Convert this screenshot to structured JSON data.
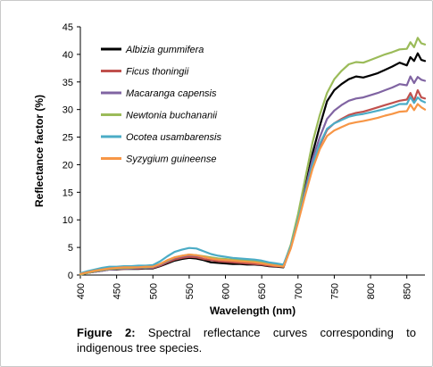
{
  "chart_data": {
    "type": "line",
    "xlabel": "Wavelength (nm)",
    "ylabel": "Reflectance factor (%)",
    "xlim": [
      400,
      875
    ],
    "ylim": [
      0,
      45
    ],
    "x_ticks": [
      400,
      450,
      500,
      550,
      600,
      650,
      700,
      750,
      800,
      850
    ],
    "y_ticks": [
      0,
      5,
      10,
      15,
      20,
      25,
      30,
      35,
      40,
      45
    ],
    "grid": false,
    "legend_position": "top-left",
    "x": [
      400,
      410,
      420,
      430,
      440,
      450,
      460,
      470,
      480,
      490,
      500,
      510,
      520,
      530,
      540,
      550,
      560,
      570,
      580,
      590,
      600,
      610,
      620,
      630,
      640,
      650,
      660,
      670,
      680,
      690,
      700,
      710,
      720,
      730,
      740,
      750,
      760,
      770,
      780,
      790,
      800,
      810,
      820,
      830,
      840,
      850,
      855,
      860,
      865,
      870,
      875
    ],
    "series": [
      {
        "name": "Albizia gummifera",
        "color": "#000000",
        "values": [
          0.1,
          0.4,
          0.6,
          0.8,
          1.0,
          1.0,
          1.1,
          1.1,
          1.1,
          1.2,
          1.2,
          1.6,
          2.1,
          2.6,
          2.9,
          3.1,
          3.0,
          2.7,
          2.3,
          2.2,
          2.1,
          2.0,
          2.0,
          1.9,
          1.9,
          1.8,
          1.6,
          1.5,
          1.4,
          5.0,
          10.0,
          16.0,
          22.0,
          27.0,
          31.5,
          33.5,
          34.6,
          35.5,
          36.0,
          35.8,
          36.2,
          36.6,
          37.2,
          37.8,
          38.5,
          38.0,
          39.5,
          38.8,
          40.2,
          39.0,
          38.8
        ]
      },
      {
        "name": "Ficus thoningii",
        "color": "#c0504d",
        "values": [
          0.1,
          0.4,
          0.6,
          0.8,
          1.0,
          1.1,
          1.1,
          1.2,
          1.2,
          1.3,
          1.3,
          1.7,
          2.3,
          2.8,
          3.1,
          3.3,
          3.2,
          2.9,
          2.7,
          2.5,
          2.4,
          2.3,
          2.2,
          2.1,
          2.0,
          1.9,
          1.7,
          1.6,
          1.5,
          5.0,
          9.8,
          15.0,
          20.0,
          23.5,
          26.3,
          27.5,
          28.3,
          29.0,
          29.4,
          29.6,
          30.0,
          30.4,
          30.8,
          31.2,
          31.6,
          31.8,
          33.0,
          31.6,
          33.5,
          32.2,
          32.0
        ]
      },
      {
        "name": "Macaranga capensis",
        "color": "#8064a2",
        "values": [
          0.1,
          0.4,
          0.6,
          0.8,
          1.0,
          1.1,
          1.2,
          1.2,
          1.3,
          1.3,
          1.4,
          1.9,
          2.5,
          3.1,
          3.4,
          3.6,
          3.5,
          3.3,
          3.1,
          2.9,
          2.8,
          2.7,
          2.6,
          2.5,
          2.4,
          2.2,
          2.0,
          1.8,
          1.6,
          5.0,
          9.9,
          15.5,
          21.0,
          25.0,
          28.3,
          29.8,
          30.8,
          31.6,
          32.0,
          32.2,
          32.6,
          33.0,
          33.5,
          34.0,
          34.6,
          34.4,
          36.0,
          34.8,
          35.9,
          35.4,
          35.2
        ]
      },
      {
        "name": "Newtonia buchananii",
        "color": "#9bbb59",
        "values": [
          0.1,
          0.4,
          0.7,
          0.9,
          1.1,
          1.2,
          1.3,
          1.3,
          1.4,
          1.4,
          1.5,
          2.0,
          2.6,
          3.2,
          3.5,
          3.7,
          3.6,
          3.4,
          3.2,
          3.0,
          2.9,
          2.8,
          2.7,
          2.6,
          2.5,
          2.3,
          2.1,
          1.9,
          1.7,
          5.5,
          11.0,
          17.5,
          24.0,
          29.0,
          33.0,
          35.5,
          37.0,
          38.2,
          38.6,
          38.5,
          39.0,
          39.5,
          40.0,
          40.4,
          40.9,
          41.0,
          42.2,
          41.3,
          43.0,
          42.0,
          41.8
        ]
      },
      {
        "name": "Ocotea usambarensis",
        "color": "#4bacc6",
        "values": [
          0.3,
          0.7,
          1.0,
          1.3,
          1.5,
          1.5,
          1.6,
          1.6,
          1.7,
          1.7,
          1.8,
          2.5,
          3.4,
          4.2,
          4.6,
          4.9,
          4.8,
          4.3,
          3.8,
          3.5,
          3.3,
          3.1,
          3.0,
          2.9,
          2.8,
          2.6,
          2.3,
          2.1,
          1.9,
          5.2,
          10.0,
          15.0,
          20.0,
          23.8,
          26.5,
          27.5,
          28.1,
          28.7,
          29.0,
          29.2,
          29.5,
          29.8,
          30.1,
          30.5,
          31.0,
          31.0,
          32.3,
          31.2,
          32.2,
          31.6,
          31.3
        ]
      },
      {
        "name": "Syzygium guineense",
        "color": "#f79646",
        "values": [
          0.2,
          0.5,
          0.8,
          1.0,
          1.2,
          1.3,
          1.4,
          1.4,
          1.4,
          1.5,
          1.5,
          2.0,
          2.7,
          3.2,
          3.5,
          3.7,
          3.6,
          3.3,
          3.0,
          2.8,
          2.7,
          2.6,
          2.5,
          2.4,
          2.3,
          2.1,
          1.9,
          1.7,
          1.5,
          4.8,
          9.5,
          14.5,
          19.2,
          22.8,
          25.2,
          26.2,
          26.8,
          27.4,
          27.7,
          27.9,
          28.2,
          28.5,
          28.9,
          29.2,
          29.6,
          29.7,
          30.9,
          29.9,
          31.0,
          30.4,
          30.0
        ]
      }
    ]
  },
  "caption": {
    "label": "Figure 2:",
    "text": " Spectral reflectance curves corresponding to indigenous tree species."
  }
}
